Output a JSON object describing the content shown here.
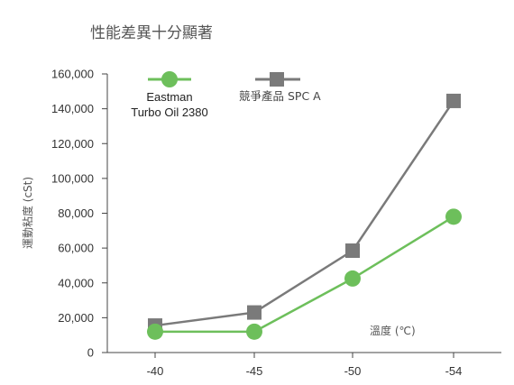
{
  "chart_data": {
    "type": "line",
    "title": "性能差異十分顯著",
    "ylabel": "運動粘度 (cSt)",
    "xlabel": "溫度 (℃)",
    "categories": [
      "-40",
      "-45",
      "-50",
      "-54"
    ],
    "ylim": [
      0,
      160000
    ],
    "yticks": [
      "0",
      "20,000",
      "40,000",
      "60,000",
      "80,000",
      "100,000",
      "120,000",
      "140,000",
      "160,000"
    ],
    "grid": false,
    "legend_position": "top",
    "series": [
      {
        "name_line1": "Eastman",
        "name_line2": "Turbo  Oil 2380",
        "marker": "circle",
        "color": "#6dbf5b",
        "values": [
          12000,
          12000,
          42500,
          78000
        ]
      },
      {
        "name": "競爭產品 SPC A",
        "marker": "square",
        "color": "#7a7a7a",
        "values": [
          15500,
          23000,
          58500,
          144500
        ]
      }
    ]
  }
}
